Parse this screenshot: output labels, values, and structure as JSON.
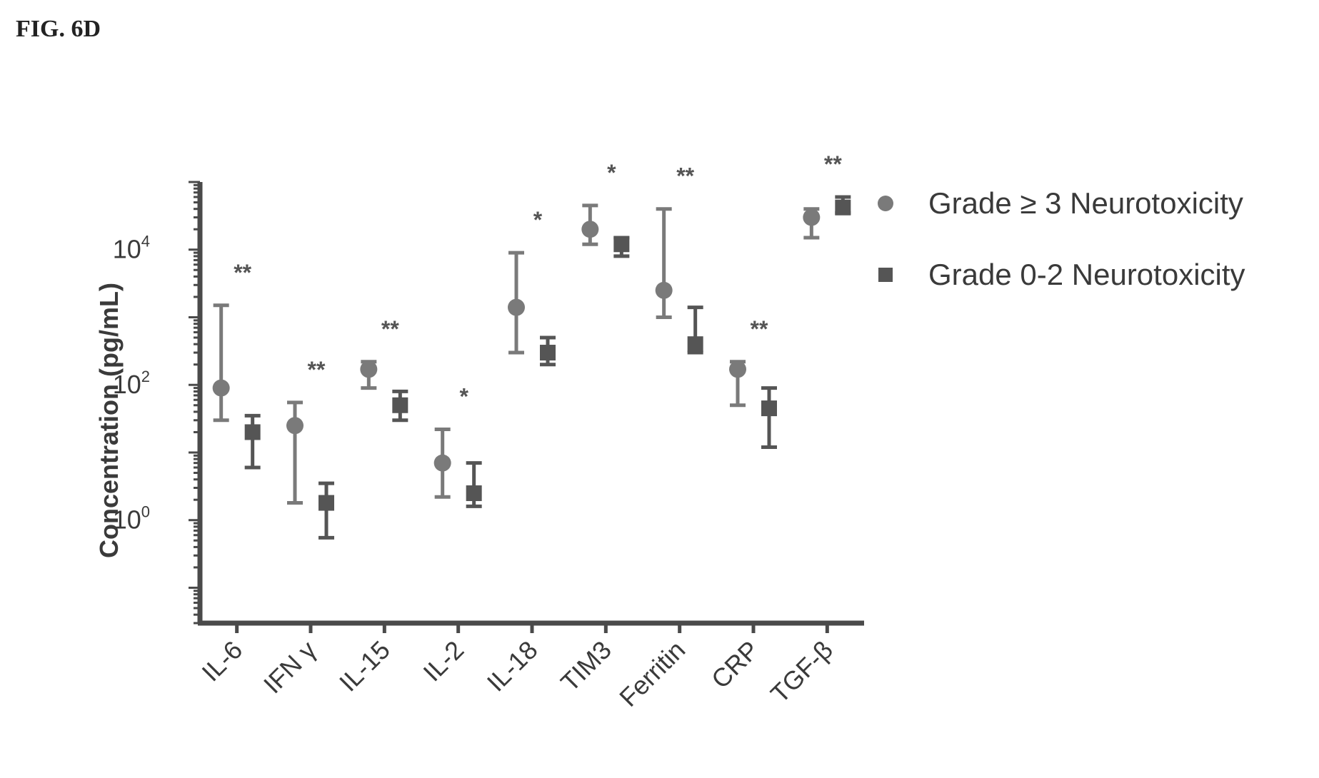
{
  "figure_label": "FIG. 6D",
  "chart_data": {
    "type": "scatter",
    "ylabel": "Concentration (pg/mL)",
    "yscale": "log",
    "ylim": [
      0.03,
      100000
    ],
    "yticks": [
      {
        "value": 1,
        "label": "10",
        "sup": "0"
      },
      {
        "value": 100,
        "label": "10",
        "sup": "2"
      },
      {
        "value": 10000,
        "label": "10",
        "sup": "4"
      }
    ],
    "categories": [
      "IL-6",
      "IFN γ",
      "IL-15",
      "IL-2",
      "IL-18",
      "TIM3",
      "Ferritin",
      "CRP",
      "TGF-β"
    ],
    "significance": [
      "**",
      "**",
      "**",
      "*",
      "*",
      "*",
      "**",
      "**",
      "**"
    ],
    "series": [
      {
        "name": "Grade ≥ 3 Neurotoxicity",
        "color": "#7a7a7a",
        "values": [
          {
            "median": 90,
            "low": 30,
            "high": 1500
          },
          {
            "median": 25,
            "low": 1.8,
            "high": 55
          },
          {
            "median": 170,
            "low": 90,
            "high": 220
          },
          {
            "median": 7,
            "low": 2.2,
            "high": 22
          },
          {
            "median": 1400,
            "low": 300,
            "high": 9000
          },
          {
            "median": 20000,
            "low": 12000,
            "high": 45000
          },
          {
            "median": 2500,
            "low": 1000,
            "high": 40000
          },
          {
            "median": 170,
            "low": 50,
            "high": 220
          },
          {
            "median": 30000,
            "low": 15000,
            "high": 40000
          }
        ]
      },
      {
        "name": "Grade 0-2 Neurotoxicity",
        "color": "#555555",
        "values": [
          {
            "median": 20,
            "low": 6,
            "high": 35
          },
          {
            "median": 1.8,
            "low": 0.55,
            "high": 3.5
          },
          {
            "median": 50,
            "low": 30,
            "high": 80
          },
          {
            "median": 2.5,
            "low": 1.6,
            "high": 7
          },
          {
            "median": 300,
            "low": 200,
            "high": 500
          },
          {
            "median": 12000,
            "low": 8000,
            "high": 15000
          },
          {
            "median": 400,
            "low": 300,
            "high": 1400
          },
          {
            "median": 45,
            "low": 12,
            "high": 90
          },
          {
            "median": 42000,
            "low": 35000,
            "high": 60000
          }
        ]
      }
    ],
    "legend_position": "right"
  }
}
